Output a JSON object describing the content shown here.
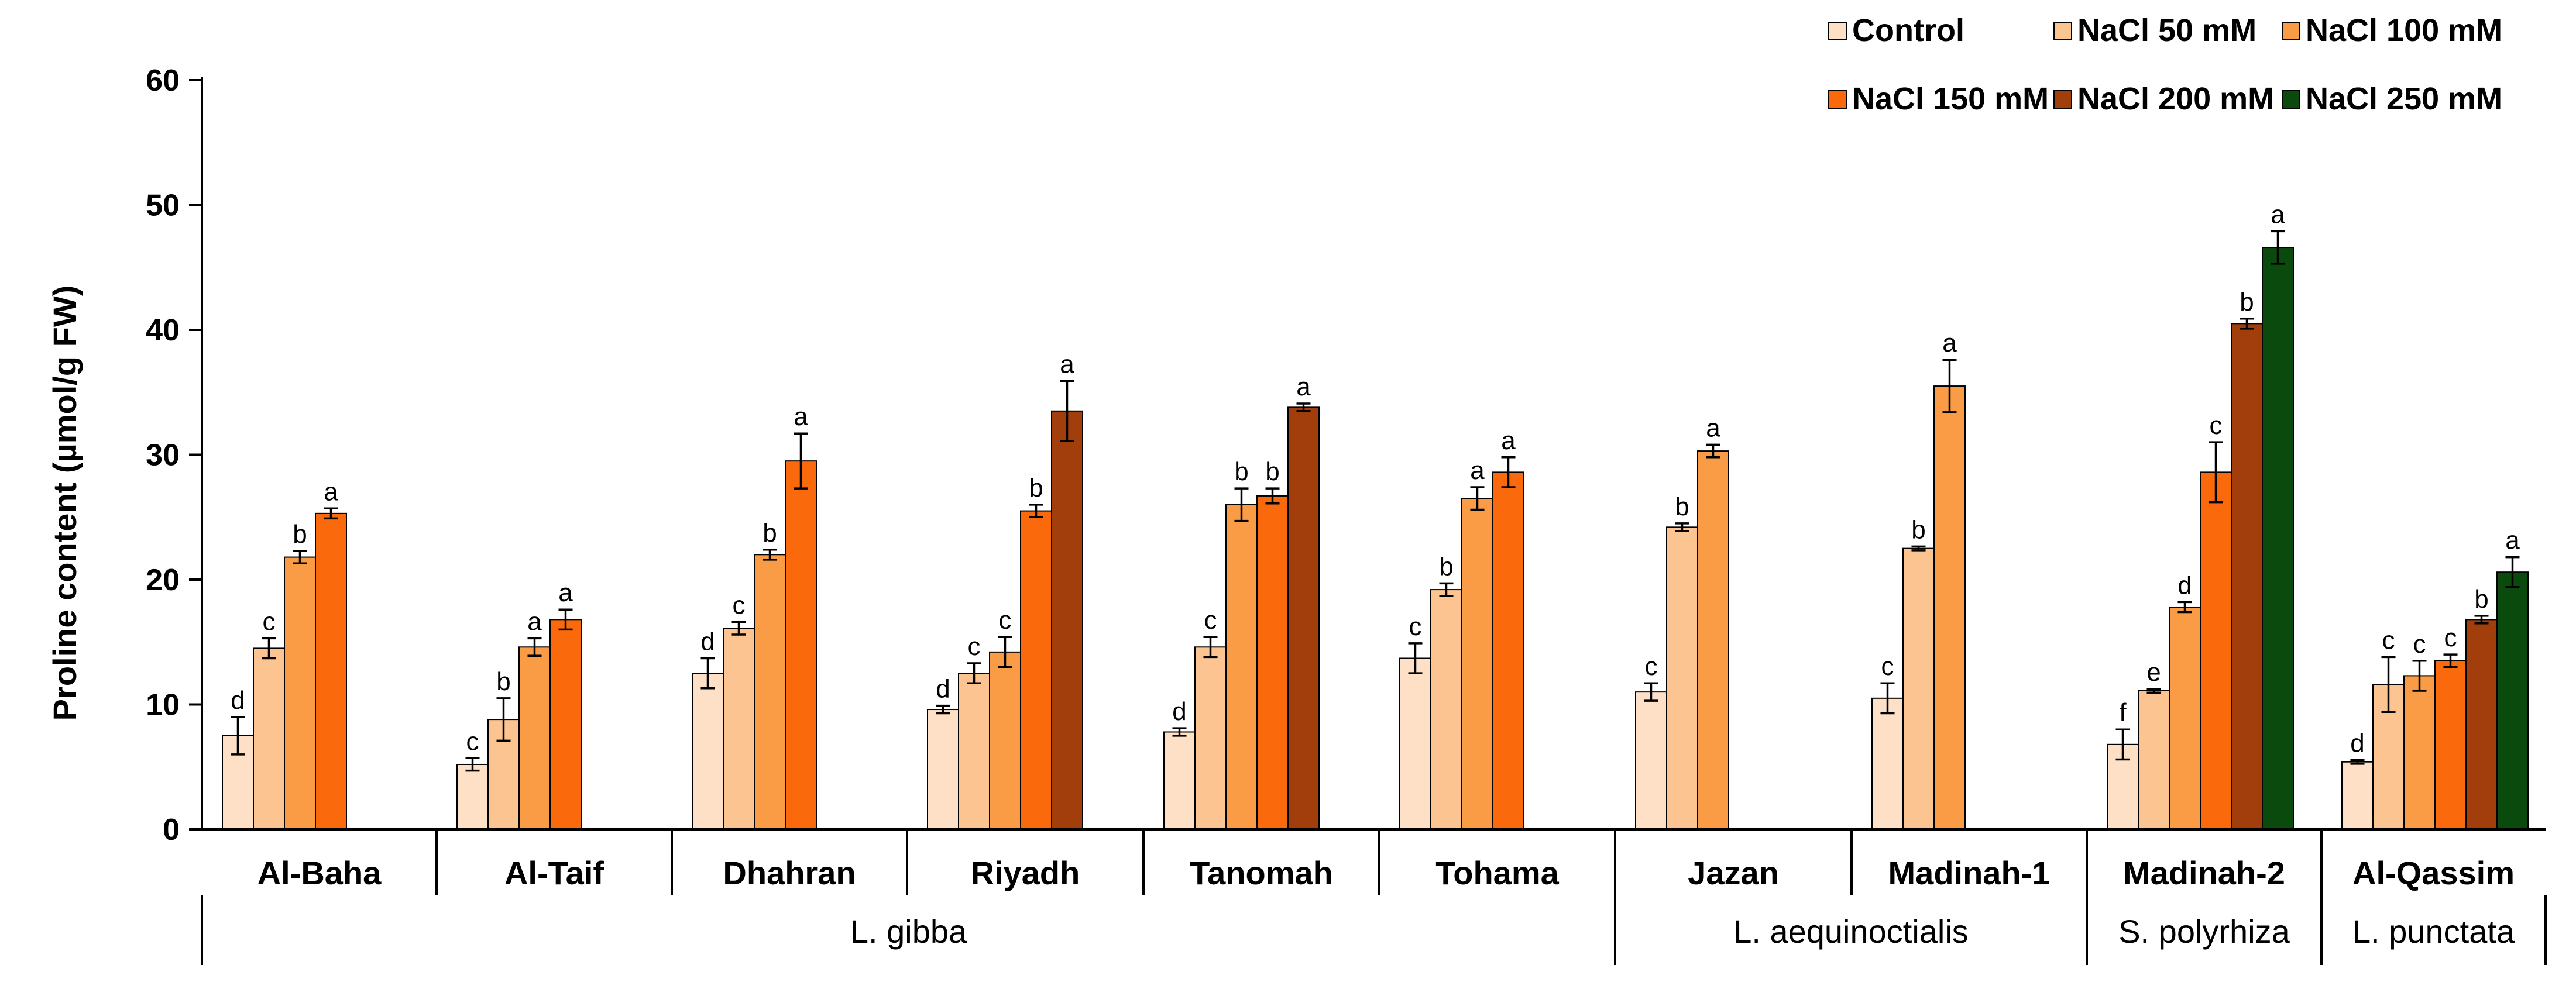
{
  "colors": {
    "Control": "#fde0c5",
    "NaCl 50 mM": "#fbc491",
    "NaCl 100 mM": "#f99c45",
    "NaCl 150 mM": "#fa6a0c",
    "NaCl 200 mM": "#a23e0c",
    "NaCl 250 mM": "#0b4a0d"
  },
  "chart_data": {
    "type": "bar",
    "title": "",
    "xlabel": "",
    "ylabel": "Proline content (µmol/g FW)",
    "ylim": [
      0,
      60
    ],
    "yticks": [
      0,
      10,
      20,
      30,
      40,
      50,
      60
    ],
    "legend": {
      "placement": "top-right",
      "entries": [
        "Control",
        "NaCl 50 mM",
        "NaCl 100 mM",
        "NaCl 150 mM",
        "NaCl 200 mM",
        "NaCl 250 mM"
      ]
    },
    "groups": [
      {
        "site": "Al-Baha",
        "species": "L. gibba",
        "bars": [
          {
            "treatment": "Control",
            "value": 7.5,
            "error": 1.5,
            "letter": "d"
          },
          {
            "treatment": "NaCl 50 mM",
            "value": 14.5,
            "error": 0.8,
            "letter": "c"
          },
          {
            "treatment": "NaCl 100 mM",
            "value": 21.8,
            "error": 0.5,
            "letter": "b"
          },
          {
            "treatment": "NaCl 150 mM",
            "value": 25.3,
            "error": 0.4,
            "letter": "a"
          }
        ]
      },
      {
        "site": "Al-Taif",
        "species": "L. gibba",
        "bars": [
          {
            "treatment": "Control",
            "value": 5.2,
            "error": 0.5,
            "letter": "c"
          },
          {
            "treatment": "NaCl 50 mM",
            "value": 8.8,
            "error": 1.7,
            "letter": "b"
          },
          {
            "treatment": "NaCl 100 mM",
            "value": 14.6,
            "error": 0.7,
            "letter": "a"
          },
          {
            "treatment": "NaCl 150 mM",
            "value": 16.8,
            "error": 0.8,
            "letter": "a"
          }
        ]
      },
      {
        "site": "Dhahran",
        "species": "L. gibba",
        "bars": [
          {
            "treatment": "Control",
            "value": 12.5,
            "error": 1.2,
            "letter": "d"
          },
          {
            "treatment": "NaCl 50 mM",
            "value": 16.1,
            "error": 0.5,
            "letter": "c"
          },
          {
            "treatment": "NaCl 100 mM",
            "value": 22.0,
            "error": 0.4,
            "letter": "b"
          },
          {
            "treatment": "NaCl 150 mM",
            "value": 29.5,
            "error": 2.2,
            "letter": "a"
          }
        ]
      },
      {
        "site": "Riyadh",
        "species": "L. gibba",
        "bars": [
          {
            "treatment": "Control",
            "value": 9.6,
            "error": 0.3,
            "letter": "d"
          },
          {
            "treatment": "NaCl 50 mM",
            "value": 12.5,
            "error": 0.8,
            "letter": "c"
          },
          {
            "treatment": "NaCl 100 mM",
            "value": 14.2,
            "error": 1.2,
            "letter": "c"
          },
          {
            "treatment": "NaCl 150 mM",
            "value": 25.5,
            "error": 0.5,
            "letter": "b"
          },
          {
            "treatment": "NaCl 200 mM",
            "value": 33.5,
            "error": 2.4,
            "letter": "a"
          }
        ]
      },
      {
        "site": "Tanomah",
        "species": "L. gibba",
        "bars": [
          {
            "treatment": "Control",
            "value": 7.8,
            "error": 0.3,
            "letter": "d"
          },
          {
            "treatment": "NaCl 50 mM",
            "value": 14.6,
            "error": 0.8,
            "letter": "c"
          },
          {
            "treatment": "NaCl 100 mM",
            "value": 26.0,
            "error": 1.3,
            "letter": "b"
          },
          {
            "treatment": "NaCl 150 mM",
            "value": 26.7,
            "error": 0.6,
            "letter": "b"
          },
          {
            "treatment": "NaCl 200 mM",
            "value": 33.8,
            "error": 0.3,
            "letter": "a"
          }
        ]
      },
      {
        "site": "Tohama",
        "species": "L. gibba",
        "bars": [
          {
            "treatment": "Control",
            "value": 13.7,
            "error": 1.2,
            "letter": "c"
          },
          {
            "treatment": "NaCl 50 mM",
            "value": 19.2,
            "error": 0.5,
            "letter": "b"
          },
          {
            "treatment": "NaCl 100 mM",
            "value": 26.5,
            "error": 0.9,
            "letter": "a"
          },
          {
            "treatment": "NaCl 150 mM",
            "value": 28.6,
            "error": 1.2,
            "letter": "a"
          }
        ]
      },
      {
        "site": "Jazan",
        "species": "L. aequinoctialis",
        "bars": [
          {
            "treatment": "Control",
            "value": 11.0,
            "error": 0.7,
            "letter": "c"
          },
          {
            "treatment": "NaCl 50 mM",
            "value": 24.2,
            "error": 0.3,
            "letter": "b"
          },
          {
            "treatment": "NaCl 100 mM",
            "value": 30.3,
            "error": 0.5,
            "letter": "a"
          }
        ]
      },
      {
        "site": "Madinah-1",
        "species": "L. aequinoctialis",
        "bars": [
          {
            "treatment": "Control",
            "value": 10.5,
            "error": 1.2,
            "letter": "c"
          },
          {
            "treatment": "NaCl 50 mM",
            "value": 22.5,
            "error": 0.15,
            "letter": "b"
          },
          {
            "treatment": "NaCl 100 mM",
            "value": 35.5,
            "error": 2.1,
            "letter": "a"
          }
        ]
      },
      {
        "site": "Madinah-2",
        "species": "S. polyrhiza",
        "bars": [
          {
            "treatment": "Control",
            "value": 6.8,
            "error": 1.2,
            "letter": "f"
          },
          {
            "treatment": "NaCl 50 mM",
            "value": 11.1,
            "error": 0.15,
            "letter": "e"
          },
          {
            "treatment": "NaCl 100 mM",
            "value": 17.8,
            "error": 0.4,
            "letter": "d"
          },
          {
            "treatment": "NaCl 150 mM",
            "value": 28.6,
            "error": 2.4,
            "letter": "c"
          },
          {
            "treatment": "NaCl 200 mM",
            "value": 40.5,
            "error": 0.4,
            "letter": "b"
          },
          {
            "treatment": "NaCl 250 mM",
            "value": 46.6,
            "error": 1.3,
            "letter": "a"
          }
        ]
      },
      {
        "site": "Al-Qassim",
        "species": "L. punctata",
        "bars": [
          {
            "treatment": "Control",
            "value": 5.4,
            "error": 0.15,
            "letter": "d"
          },
          {
            "treatment": "NaCl 50 mM",
            "value": 11.6,
            "error": 2.2,
            "letter": "c"
          },
          {
            "treatment": "NaCl 100 mM",
            "value": 12.3,
            "error": 1.2,
            "letter": "c"
          },
          {
            "treatment": "NaCl 150 mM",
            "value": 13.5,
            "error": 0.5,
            "letter": "c"
          },
          {
            "treatment": "NaCl 200 mM",
            "value": 16.8,
            "error": 0.3,
            "letter": "b"
          },
          {
            "treatment": "NaCl 250 mM",
            "value": 20.6,
            "error": 1.2,
            "letter": "a"
          }
        ]
      }
    ],
    "species_groups": [
      {
        "name": "L. gibba",
        "sites": [
          "Al-Baha",
          "Al-Taif",
          "Dhahran",
          "Riyadh",
          "Tanomah",
          "Tohama"
        ]
      },
      {
        "name": "L. aequinoctialis",
        "sites": [
          "Jazan",
          "Madinah-1"
        ]
      },
      {
        "name": "S. polyrhiza",
        "sites": [
          "Madinah-2"
        ]
      },
      {
        "name": "L. punctata",
        "sites": [
          "Al-Qassim"
        ]
      }
    ]
  }
}
